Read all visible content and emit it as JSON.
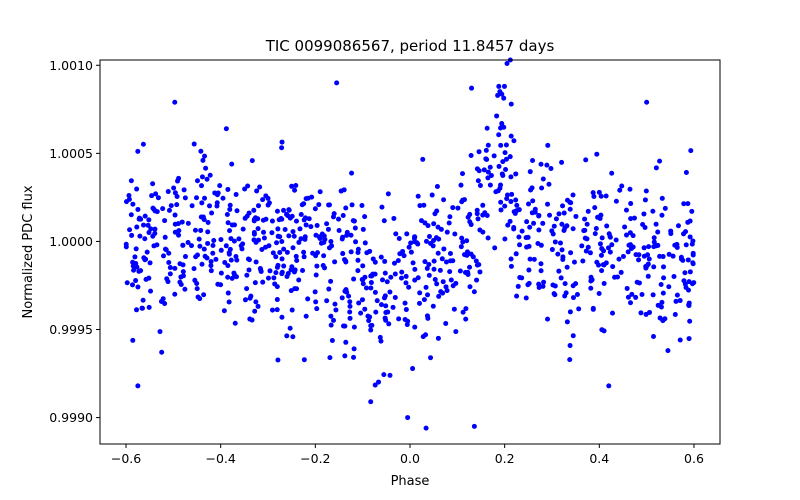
{
  "chart_data": {
    "type": "scatter",
    "title": "TIC 0099086567, period 11.8457 days",
    "xlabel": "Phase",
    "ylabel": "Normalized PDC flux",
    "xlim": [
      -0.655,
      0.655
    ],
    "ylim": [
      0.99885,
      1.00103
    ],
    "xticks": [
      -0.6,
      -0.4,
      -0.2,
      0.0,
      0.2,
      0.4,
      0.6
    ],
    "xtick_labels": [
      "−0.6",
      "−0.4",
      "−0.2",
      "0.0",
      "0.2",
      "0.4",
      "0.6"
    ],
    "yticks": [
      0.999,
      0.9995,
      1.0,
      1.0005,
      1.001
    ],
    "ytick_labels": [
      "0.9990",
      "0.9995",
      "1.0000",
      "1.0005",
      "1.0010"
    ],
    "grid": false,
    "marker_color": "#0000ff",
    "series": [
      {
        "name": "flux",
        "n_points": 1000,
        "x_range": [
          -0.6,
          0.6
        ],
        "baseline": 1.0,
        "scatter_std": 0.00024,
        "dips": [
          {
            "center_phase": -0.07,
            "depth": 0.0003,
            "half_width": 0.07
          },
          {
            "center_phase": 0.07,
            "depth": 0.00012,
            "half_width": 0.05
          },
          {
            "center_phase": 0.36,
            "depth": 0.00012,
            "half_width": 0.04
          },
          {
            "center_phase": 0.54,
            "depth": 8e-05,
            "half_width": 0.04
          }
        ],
        "bumps": [
          {
            "center_phase": 0.185,
            "height": 0.00045,
            "half_width": 0.035
          }
        ],
        "highlight_points": [
          {
            "x": -0.575,
            "y": 0.99918
          },
          {
            "x": -0.497,
            "y": 1.00079
          },
          {
            "x": -0.388,
            "y": 1.00064
          },
          {
            "x": -0.155,
            "y": 1.0009
          },
          {
            "x": -0.083,
            "y": 0.99909
          },
          {
            "x": -0.005,
            "y": 0.999
          },
          {
            "x": 0.034,
            "y": 0.99894
          },
          {
            "x": 0.13,
            "y": 1.00087
          },
          {
            "x": 0.136,
            "y": 0.99895
          },
          {
            "x": 0.205,
            "y": 1.00101
          },
          {
            "x": 0.212,
            "y": 1.00103
          },
          {
            "x": 0.42,
            "y": 0.99918
          },
          {
            "x": 0.5,
            "y": 1.00079
          },
          {
            "x": 0.545,
            "y": 0.99938
          },
          {
            "x": 0.59,
            "y": 0.99965
          }
        ]
      }
    ]
  }
}
